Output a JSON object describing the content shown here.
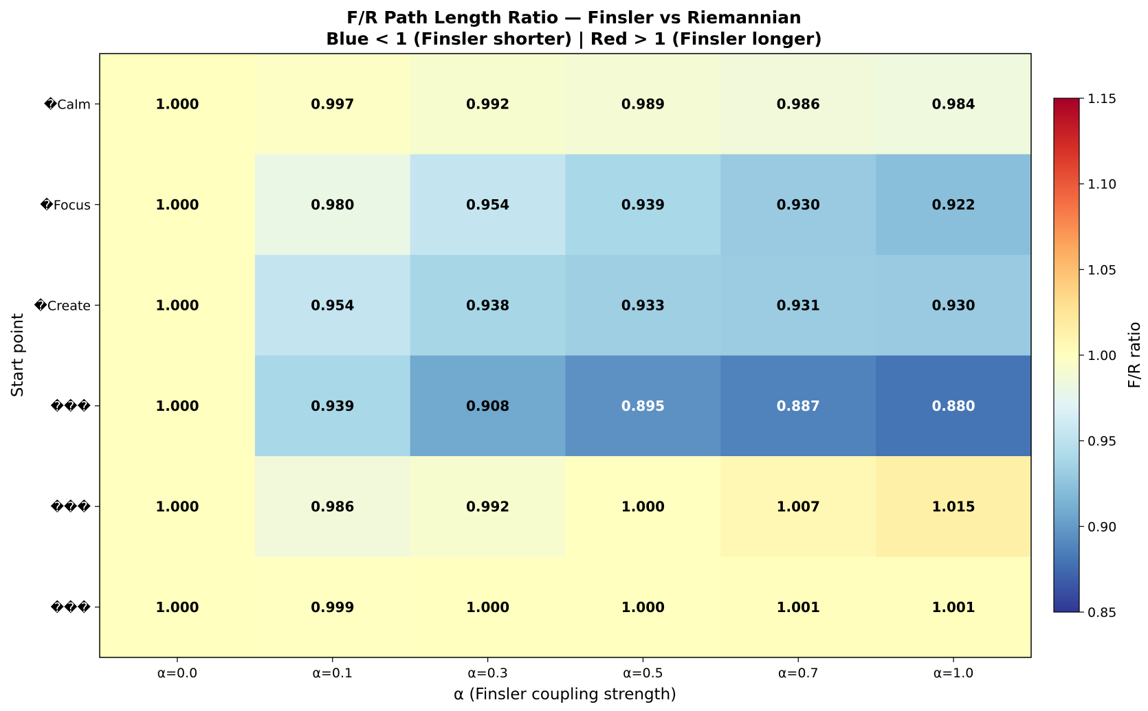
{
  "chart_data": {
    "type": "heatmap",
    "title": "F/R Path Length Ratio — Finsler vs Riemannian",
    "subtitle": "Blue < 1 (Finsler shorter) | Red > 1 (Finsler longer)",
    "xlabel": "α (Finsler coupling strength)",
    "ylabel": "Start point",
    "x_categories": [
      "α=0.0",
      "α=0.1",
      "α=0.3",
      "α=0.5",
      "α=0.7",
      "α=1.0"
    ],
    "y_categories": [
      "�Calm",
      "�Focus",
      "�Create",
      "���",
      "���",
      "���"
    ],
    "values": [
      [
        1.0,
        0.997,
        0.992,
        0.989,
        0.986,
        0.984
      ],
      [
        1.0,
        0.98,
        0.954,
        0.939,
        0.93,
        0.922
      ],
      [
        1.0,
        0.954,
        0.938,
        0.933,
        0.931,
        0.93
      ],
      [
        1.0,
        0.939,
        0.908,
        0.895,
        0.887,
        0.88
      ],
      [
        1.0,
        0.986,
        0.992,
        1.0,
        1.007,
        1.015
      ],
      [
        1.0,
        0.999,
        1.0,
        1.0,
        1.001,
        1.001
      ]
    ],
    "value_labels": [
      [
        "1.000",
        "0.997",
        "0.992",
        "0.989",
        "0.986",
        "0.984"
      ],
      [
        "1.000",
        "0.980",
        "0.954",
        "0.939",
        "0.930",
        "0.922"
      ],
      [
        "1.000",
        "0.954",
        "0.938",
        "0.933",
        "0.931",
        "0.930"
      ],
      [
        "1.000",
        "0.939",
        "0.908",
        "0.895",
        "0.887",
        "0.880"
      ],
      [
        "1.000",
        "0.986",
        "0.992",
        "1.000",
        "1.007",
        "1.015"
      ],
      [
        "1.000",
        "0.999",
        "1.000",
        "1.000",
        "1.001",
        "1.001"
      ]
    ],
    "colormap": "RdYlBu_r",
    "vmin": 0.85,
    "vmax": 1.15,
    "colorbar": {
      "label": "F/R ratio",
      "ticks": [
        0.85,
        0.9,
        0.95,
        1.0,
        1.05,
        1.1,
        1.15
      ],
      "tick_labels": [
        "0.85",
        "0.90",
        "0.95",
        "1.00",
        "1.05",
        "1.10",
        "1.15"
      ]
    }
  }
}
